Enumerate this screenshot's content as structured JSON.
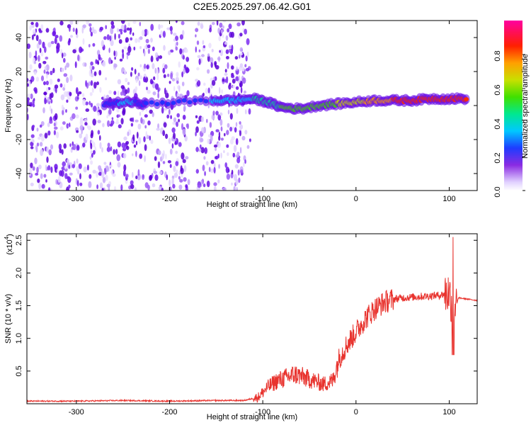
{
  "title": "C2E5.2025.297.06.42.G01",
  "colors": {
    "snr_line": "#e8332e",
    "spectrogram_low": "#e6dcff",
    "spectrogram_mid": "#6a00e0"
  },
  "chart_data": [
    {
      "type": "heatmap",
      "name": "spectrogram",
      "xlabel": "Height of straight line (km)",
      "ylabel": "Frequency (Hz)",
      "xlim": [
        -353,
        130
      ],
      "ylim": [
        -50,
        50
      ],
      "xticks": [
        -300,
        -200,
        -100,
        0,
        100
      ],
      "yticks": [
        -40,
        -20,
        0,
        20,
        40
      ],
      "xtick_labels": [
        "-300",
        "-200",
        "-100",
        "0",
        "100"
      ],
      "ytick_labels": [
        "-40",
        "-20",
        "0",
        "20",
        "40"
      ],
      "colorbar": {
        "label": "Normalized spectral amplitude",
        "range": [
          0,
          1
        ],
        "ticks": [
          0.0,
          0.2,
          0.4,
          0.6,
          0.8
        ],
        "tick_labels": [
          "0.0",
          "0.2",
          "0.4",
          "0.6",
          "0.8"
        ],
        "colormap": "rainbow"
      },
      "noise_region_x": [
        -353,
        -113
      ],
      "signal_track": [
        {
          "x": -270,
          "f": 1,
          "amp": 0.2
        },
        {
          "x": -245,
          "f": 2,
          "amp": 0.35
        },
        {
          "x": -225,
          "f": 1,
          "amp": 0.2
        },
        {
          "x": -155,
          "f": 3,
          "amp": 0.3
        },
        {
          "x": -130,
          "f": 3,
          "amp": 0.35
        },
        {
          "x": -110,
          "f": 4,
          "amp": 0.4
        },
        {
          "x": -95,
          "f": 2,
          "amp": 0.45
        },
        {
          "x": -80,
          "f": -1,
          "amp": 0.5
        },
        {
          "x": -60,
          "f": -2,
          "amp": 0.55
        },
        {
          "x": -40,
          "f": 0,
          "amp": 0.55
        },
        {
          "x": -20,
          "f": 1,
          "amp": 0.6
        },
        {
          "x": 0,
          "f": 2,
          "amp": 0.7
        },
        {
          "x": 20,
          "f": 3,
          "amp": 0.8
        },
        {
          "x": 40,
          "f": 3,
          "amp": 0.85
        },
        {
          "x": 60,
          "f": 3,
          "amp": 0.9
        },
        {
          "x": 80,
          "f": 4,
          "amp": 0.9
        },
        {
          "x": 100,
          "f": 4,
          "amp": 0.9
        },
        {
          "x": 120,
          "f": 4,
          "amp": 0.85
        }
      ]
    },
    {
      "type": "line",
      "name": "snr",
      "xlabel": "Height of straight line (km)",
      "ylabel": "SNR (10 * v/v)",
      "multiplier_label": "(x10",
      "multiplier_exp": "4",
      "multiplier_close": ")",
      "xlim": [
        -353,
        130
      ],
      "ylim": [
        0,
        2.6
      ],
      "xticks": [
        -300,
        -200,
        -100,
        0,
        100
      ],
      "yticks": [
        0.5,
        1.0,
        1.5,
        2.0,
        2.5
      ],
      "xtick_labels": [
        "-300",
        "-200",
        "-100",
        "0",
        "100"
      ],
      "ytick_labels": [
        "0.5",
        "1.0",
        "1.5",
        "2.0",
        "2.5"
      ],
      "series": [
        {
          "x": [
            -353,
            -300,
            -250,
            -200,
            -150,
            -120,
            -105,
            -95,
            -85,
            -75,
            -65,
            -55,
            -45,
            -35,
            -25,
            -18,
            -10,
            0,
            10,
            20,
            30,
            40,
            50,
            60,
            70,
            80,
            90,
            100,
            105,
            110,
            120,
            130
          ],
          "y": [
            0.04,
            0.04,
            0.05,
            0.04,
            0.05,
            0.05,
            0.1,
            0.25,
            0.35,
            0.4,
            0.45,
            0.4,
            0.35,
            0.3,
            0.35,
            0.7,
            0.9,
            1.1,
            1.3,
            1.45,
            1.55,
            1.6,
            1.62,
            1.63,
            1.64,
            1.65,
            1.66,
            1.7,
            1.4,
            1.62,
            1.6,
            1.58
          ]
        }
      ]
    }
  ]
}
